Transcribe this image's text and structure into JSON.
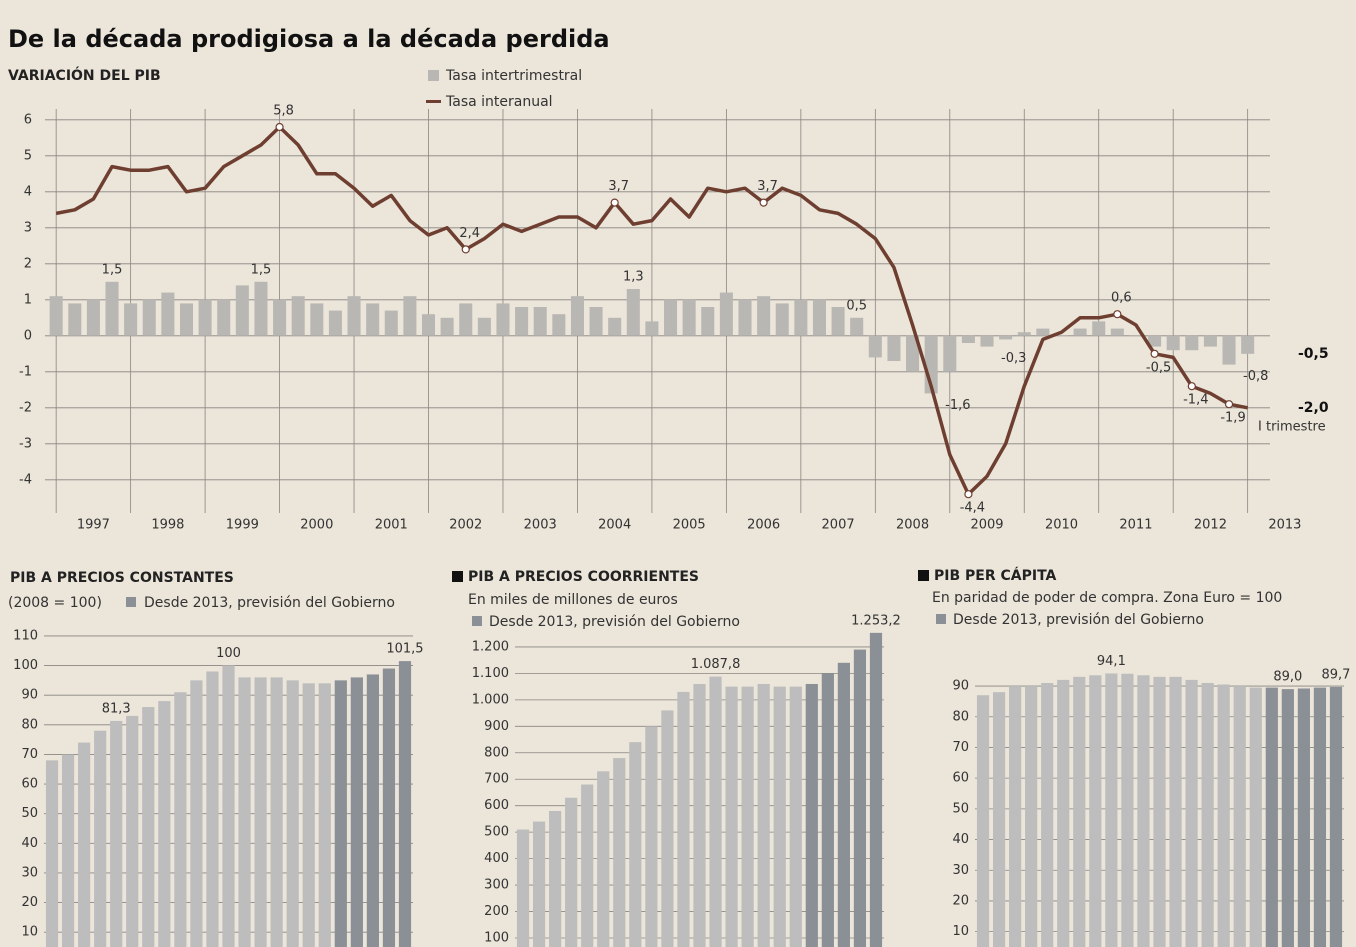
{
  "chart_data": [
    {
      "type": "line",
      "title": "De la década prodigiosa a la década perdida",
      "subtitle": "VARIACIÓN DEL PIB",
      "annotation": "I trimestre",
      "x": [
        1997,
        1997.25,
        1997.5,
        1997.75,
        1998,
        1998.25,
        1998.5,
        1998.75,
        1999,
        1999.25,
        1999.5,
        1999.75,
        2000,
        2000.25,
        2000.5,
        2000.75,
        2001,
        2001.25,
        2001.5,
        2001.75,
        2002,
        2002.25,
        2002.5,
        2002.75,
        2003,
        2003.25,
        2003.5,
        2003.75,
        2004,
        2004.25,
        2004.5,
        2004.75,
        2005,
        2005.25,
        2005.5,
        2005.75,
        2006,
        2006.25,
        2006.5,
        2006.75,
        2007,
        2007.25,
        2007.5,
        2007.75,
        2008,
        2008.25,
        2008.5,
        2008.75,
        2009,
        2009.25,
        2009.5,
        2009.75,
        2010,
        2010.25,
        2010.5,
        2010.75,
        2011,
        2011.25,
        2011.5,
        2011.75,
        2012,
        2012.25,
        2012.5,
        2012.75,
        2013
      ],
      "xlim": [
        1996.85,
        2013.3
      ],
      "xticks": [
        {
          "value": 1997,
          "label": "1997"
        },
        {
          "value": 1998,
          "label": "1998"
        },
        {
          "value": 1999,
          "label": "1999"
        },
        {
          "value": 2000,
          "label": "2000"
        },
        {
          "value": 2001,
          "label": "2001"
        },
        {
          "value": 2002,
          "label": "2002"
        },
        {
          "value": 2003,
          "label": "2003"
        },
        {
          "value": 2004,
          "label": "2004"
        },
        {
          "value": 2005,
          "label": "2005"
        },
        {
          "value": 2006,
          "label": "2006"
        },
        {
          "value": 2007,
          "label": "2007"
        },
        {
          "value": 2008,
          "label": "2008"
        },
        {
          "value": 2009,
          "label": "2009"
        },
        {
          "value": 2010,
          "label": "2010"
        },
        {
          "value": 2011,
          "label": "2011"
        },
        {
          "value": 2012,
          "label": "2012"
        },
        {
          "value": 2013,
          "label": "2013"
        }
      ],
      "ylim": [
        -4.7,
        6.3
      ],
      "yticks": [
        -4,
        -3,
        -2,
        -1,
        0,
        1,
        2,
        3,
        4,
        5,
        6
      ],
      "grid": true,
      "series": [
        {
          "name": "Tasa intertrimestral",
          "type": "bar",
          "color": "#b9b7b3",
          "values": [
            1.1,
            0.9,
            1.0,
            1.5,
            0.9,
            1.0,
            1.2,
            0.9,
            1.0,
            1.0,
            1.4,
            1.5,
            1.0,
            1.1,
            0.9,
            0.7,
            1.1,
            0.9,
            0.7,
            1.1,
            0.6,
            0.5,
            0.9,
            0.5,
            0.9,
            0.8,
            0.8,
            0.6,
            1.1,
            0.8,
            0.5,
            1.3,
            0.4,
            1.0,
            1.0,
            0.8,
            1.2,
            1.0,
            1.1,
            0.9,
            1.0,
            1.0,
            0.8,
            0.5,
            -0.6,
            -0.7,
            -1.0,
            -1.6,
            -1.0,
            -0.2,
            -0.3,
            -0.1,
            0.1,
            0.2,
            0.0,
            0.2,
            0.4,
            0.2,
            0.0,
            -0.3,
            -0.4,
            -0.4,
            -0.3,
            -0.8,
            -0.5
          ],
          "value_labels": [
            null,
            null,
            null,
            "1,5",
            null,
            null,
            null,
            null,
            null,
            null,
            null,
            "1,5",
            null,
            null,
            null,
            null,
            null,
            null,
            null,
            null,
            null,
            null,
            null,
            null,
            null,
            null,
            null,
            null,
            null,
            null,
            null,
            "1,3",
            null,
            null,
            null,
            null,
            null,
            null,
            null,
            null,
            null,
            null,
            null,
            "0,5",
            null,
            null,
            null,
            "-1,6",
            null,
            null,
            "-0,3",
            null,
            null,
            null,
            null,
            null,
            null,
            null,
            null,
            null,
            null,
            null,
            null,
            "-0,8",
            "-0,5"
          ]
        },
        {
          "name": "Tasa interanual",
          "type": "line",
          "color": "#6e3f30",
          "values": [
            3.4,
            3.5,
            3.8,
            4.7,
            4.6,
            4.6,
            4.7,
            4.0,
            4.1,
            4.7,
            5.0,
            5.3,
            5.8,
            5.3,
            4.5,
            4.5,
            4.1,
            3.6,
            3.9,
            3.2,
            2.8,
            3.0,
            2.4,
            2.7,
            3.1,
            2.9,
            3.1,
            3.3,
            3.3,
            3.0,
            3.7,
            3.1,
            3.2,
            3.8,
            3.3,
            4.1,
            4.0,
            4.1,
            3.7,
            4.1,
            3.9,
            3.5,
            3.4,
            3.1,
            2.7,
            1.9,
            0.3,
            -1.4,
            -3.3,
            -4.4,
            -3.9,
            -3.0,
            -1.4,
            -0.1,
            0.1,
            0.5,
            0.5,
            0.6,
            0.3,
            -0.5,
            -0.6,
            -1.4,
            -1.6,
            -1.9,
            -2.0
          ],
          "value_labels": [
            null,
            null,
            null,
            null,
            null,
            null,
            null,
            null,
            null,
            null,
            null,
            null,
            "5,8",
            null,
            null,
            null,
            null,
            null,
            null,
            null,
            null,
            null,
            "2,4",
            null,
            null,
            null,
            null,
            null,
            null,
            null,
            "3,7",
            null,
            null,
            null,
            null,
            null,
            null,
            null,
            "3,7",
            null,
            null,
            null,
            null,
            null,
            null,
            null,
            null,
            null,
            null,
            "-4,4",
            null,
            null,
            null,
            null,
            null,
            null,
            null,
            "0,6",
            null,
            "-0,5",
            null,
            "-1,4",
            null,
            "-1,9",
            "-2,0"
          ]
        }
      ]
    },
    {
      "type": "bar",
      "title": "PIB A PRECIOS CONSTANTES",
      "subtitle": "(2008 = 100)",
      "ylim": [
        5,
        112
      ],
      "yticks": [
        10,
        20,
        30,
        40,
        50,
        60,
        70,
        80,
        90,
        100,
        110
      ],
      "grid": true,
      "series": [
        {
          "color": "#bdbdbd",
          "values": [
            68,
            70,
            74,
            78,
            81.3,
            83,
            86,
            88,
            91,
            95,
            98,
            100,
            96,
            96,
            96,
            95,
            94,
            94,
            null,
            null,
            null,
            null,
            null
          ],
          "value_labels": [
            null,
            null,
            null,
            null,
            "81,3",
            null,
            null,
            null,
            null,
            null,
            null,
            "100",
            null,
            null,
            null,
            null,
            null,
            null,
            null,
            null,
            null,
            null,
            null
          ]
        },
        {
          "name": "Desde 2013, previsión del Gobierno",
          "color": "#8b9096",
          "values": [
            null,
            null,
            null,
            null,
            null,
            null,
            null,
            null,
            null,
            null,
            null,
            null,
            null,
            null,
            null,
            null,
            null,
            null,
            95,
            96,
            97,
            99,
            101.5
          ],
          "value_labels": [
            null,
            null,
            null,
            null,
            null,
            null,
            null,
            null,
            null,
            null,
            null,
            null,
            null,
            null,
            null,
            null,
            null,
            null,
            null,
            null,
            null,
            null,
            "101,5"
          ]
        }
      ]
    },
    {
      "type": "bar",
      "title": "PIB A PRECIOS COORRIENTES",
      "subtitle": "En miles de millones de euros",
      "ylim": [
        66,
        1264
      ],
      "yticks": [
        100,
        200,
        300,
        400,
        500,
        600,
        700,
        800,
        900,
        {
          "value": 1000,
          "label": "1.000"
        },
        {
          "value": 1100,
          "label": "1.100"
        },
        {
          "value": 1200,
          "label": "1.200"
        }
      ],
      "grid": true,
      "series": [
        {
          "color": "#bdbdbd",
          "values": [
            510,
            540,
            580,
            630,
            680,
            730,
            780,
            840,
            900,
            960,
            1030,
            1060,
            1087.8,
            1050,
            1050,
            1060,
            1050,
            1050,
            null,
            null,
            null,
            null,
            null
          ],
          "value_labels": [
            null,
            null,
            null,
            null,
            null,
            null,
            null,
            null,
            null,
            null,
            null,
            null,
            "1.087,8",
            null,
            null,
            null,
            null,
            null,
            null,
            null,
            null,
            null,
            null
          ]
        },
        {
          "name": "Desde 2013, previsión del Gobierno",
          "color": "#8b9096",
          "values": [
            null,
            null,
            null,
            null,
            null,
            null,
            null,
            null,
            null,
            null,
            null,
            null,
            null,
            null,
            null,
            null,
            null,
            null,
            1060,
            1100,
            1140,
            1190,
            1253.2
          ],
          "value_labels": [
            null,
            null,
            null,
            null,
            null,
            null,
            null,
            null,
            null,
            null,
            null,
            null,
            null,
            null,
            null,
            null,
            null,
            null,
            null,
            null,
            null,
            null,
            "1.253,2"
          ]
        }
      ]
    },
    {
      "type": "bar",
      "title": "PIB PER CÁPITA",
      "subtitle": "En paridad de poder de compra. Zona Euro = 100",
      "ylim": [
        5,
        105
      ],
      "yticks": [
        10,
        20,
        30,
        40,
        50,
        60,
        70,
        80,
        90
      ],
      "grid": true,
      "series": [
        {
          "color": "#bdbdbd",
          "values": [
            87,
            88,
            90,
            90,
            91,
            92,
            93,
            93.5,
            94.1,
            94,
            93.5,
            93,
            93,
            92,
            91,
            90.5,
            90,
            89.5,
            null,
            null,
            null,
            null,
            null
          ],
          "value_labels": [
            null,
            null,
            null,
            null,
            null,
            null,
            null,
            null,
            "94,1",
            null,
            null,
            null,
            null,
            null,
            null,
            null,
            null,
            null,
            null,
            null,
            null,
            null,
            null
          ]
        },
        {
          "name": "Desde 2013, previsión del Gobierno",
          "color": "#8b9096",
          "values": [
            null,
            null,
            null,
            null,
            null,
            null,
            null,
            null,
            null,
            null,
            null,
            null,
            null,
            null,
            null,
            null,
            null,
            null,
            89.5,
            89.0,
            89.2,
            89.5,
            89.7
          ],
          "value_labels": [
            null,
            null,
            null,
            null,
            null,
            null,
            null,
            null,
            null,
            null,
            null,
            null,
            null,
            null,
            null,
            null,
            null,
            null,
            null,
            "89,0",
            null,
            null,
            "89,7"
          ]
        }
      ]
    }
  ]
}
